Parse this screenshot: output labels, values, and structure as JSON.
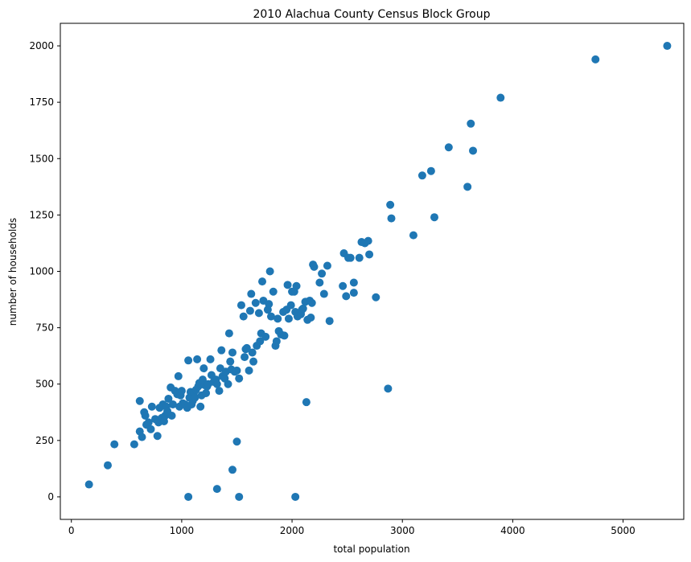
{
  "chart_data": {
    "type": "scatter",
    "title": "2010 Alachua County Census Block Group",
    "xlabel": "total population",
    "ylabel": "number of households",
    "xlim": [
      -100,
      5550
    ],
    "ylim": [
      -100,
      2100
    ],
    "xticks": [
      0,
      1000,
      2000,
      3000,
      4000,
      5000
    ],
    "yticks": [
      0,
      250,
      500,
      750,
      1000,
      1250,
      1500,
      1750,
      2000
    ],
    "grid": false,
    "legend": "none",
    "marker_color": "#1f77b4",
    "series": [
      {
        "points": [
          [
            160,
            55
          ],
          [
            330,
            140
          ],
          [
            390,
            233
          ],
          [
            570,
            233
          ],
          [
            620,
            425
          ],
          [
            620,
            290
          ],
          [
            640,
            265
          ],
          [
            660,
            375
          ],
          [
            670,
            360
          ],
          [
            680,
            320
          ],
          [
            700,
            330
          ],
          [
            720,
            300
          ],
          [
            730,
            400
          ],
          [
            760,
            345
          ],
          [
            780,
            270
          ],
          [
            790,
            330
          ],
          [
            800,
            395
          ],
          [
            810,
            345
          ],
          [
            820,
            350
          ],
          [
            830,
            410
          ],
          [
            840,
            335
          ],
          [
            850,
            360
          ],
          [
            860,
            400
          ],
          [
            870,
            380
          ],
          [
            880,
            435
          ],
          [
            900,
            485
          ],
          [
            910,
            360
          ],
          [
            920,
            410
          ],
          [
            940,
            470
          ],
          [
            960,
            455
          ],
          [
            970,
            535
          ],
          [
            980,
            400
          ],
          [
            990,
            450
          ],
          [
            1000,
            470
          ],
          [
            1010,
            415
          ],
          [
            1030,
            410
          ],
          [
            1050,
            395
          ],
          [
            1060,
            605
          ],
          [
            1070,
            440
          ],
          [
            1080,
            465
          ],
          [
            1090,
            410
          ],
          [
            1100,
            425
          ],
          [
            1110,
            460
          ],
          [
            1120,
            440
          ],
          [
            1130,
            475
          ],
          [
            1140,
            610
          ],
          [
            1150,
            490
          ],
          [
            1160,
            505
          ],
          [
            1170,
            400
          ],
          [
            1180,
            450
          ],
          [
            1190,
            520
          ],
          [
            1200,
            570
          ],
          [
            1210,
            495
          ],
          [
            1220,
            460
          ],
          [
            1230,
            490
          ],
          [
            1240,
            500
          ],
          [
            1260,
            610
          ],
          [
            1270,
            540
          ],
          [
            1290,
            510
          ],
          [
            1310,
            520
          ],
          [
            1320,
            500
          ],
          [
            1340,
            470
          ],
          [
            1350,
            570
          ],
          [
            1360,
            650
          ],
          [
            1370,
            535
          ],
          [
            1390,
            525
          ],
          [
            1400,
            555
          ],
          [
            1420,
            500
          ],
          [
            1430,
            725
          ],
          [
            1440,
            600
          ],
          [
            1450,
            565
          ],
          [
            1460,
            640
          ],
          [
            1480,
            555
          ],
          [
            1500,
            560
          ],
          [
            1520,
            525
          ],
          [
            1540,
            850
          ],
          [
            1560,
            800
          ],
          [
            1570,
            620
          ],
          [
            1580,
            655
          ],
          [
            1590,
            660
          ],
          [
            1610,
            560
          ],
          [
            1620,
            825
          ],
          [
            1630,
            900
          ],
          [
            1640,
            640
          ],
          [
            1650,
            600
          ],
          [
            1670,
            860
          ],
          [
            1680,
            670
          ],
          [
            1700,
            815
          ],
          [
            1710,
            690
          ],
          [
            1720,
            725
          ],
          [
            1730,
            955
          ],
          [
            1740,
            870
          ],
          [
            1760,
            710
          ],
          [
            1780,
            830
          ],
          [
            1790,
            855
          ],
          [
            1800,
            1000
          ],
          [
            1810,
            800
          ],
          [
            1830,
            910
          ],
          [
            1850,
            670
          ],
          [
            1860,
            690
          ],
          [
            1870,
            790
          ],
          [
            1880,
            735
          ],
          [
            1900,
            720
          ],
          [
            1920,
            820
          ],
          [
            1930,
            715
          ],
          [
            1950,
            830
          ],
          [
            1960,
            940
          ],
          [
            1970,
            790
          ],
          [
            1990,
            850
          ],
          [
            2000,
            910
          ],
          [
            2020,
            910
          ],
          [
            2030,
            820
          ],
          [
            2040,
            935
          ],
          [
            2050,
            800
          ],
          [
            2080,
            810
          ],
          [
            2090,
            830
          ],
          [
            2100,
            835
          ],
          [
            2120,
            865
          ],
          [
            2140,
            785
          ],
          [
            2160,
            870
          ],
          [
            2170,
            795
          ],
          [
            2180,
            860
          ],
          [
            2190,
            1030
          ],
          [
            2200,
            1020
          ],
          [
            2250,
            950
          ],
          [
            2270,
            990
          ],
          [
            2290,
            900
          ],
          [
            2320,
            1025
          ],
          [
            2340,
            780
          ],
          [
            2460,
            935
          ],
          [
            2470,
            1080
          ],
          [
            2490,
            890
          ],
          [
            2510,
            1060
          ],
          [
            2530,
            1060
          ],
          [
            2560,
            950
          ],
          [
            2560,
            905
          ],
          [
            2610,
            1060
          ],
          [
            2630,
            1130
          ],
          [
            2660,
            1125
          ],
          [
            2690,
            1135
          ],
          [
            2700,
            1075
          ],
          [
            2760,
            885
          ],
          [
            2870,
            480
          ],
          [
            2890,
            1295
          ],
          [
            2900,
            1235
          ],
          [
            3100,
            1160
          ],
          [
            3180,
            1425
          ],
          [
            3260,
            1445
          ],
          [
            3290,
            1240
          ],
          [
            3420,
            1550
          ],
          [
            3590,
            1375
          ],
          [
            3620,
            1655
          ],
          [
            3640,
            1535
          ],
          [
            3890,
            1770
          ],
          [
            4750,
            1940
          ],
          [
            5400,
            2000
          ],
          [
            1060,
            0
          ],
          [
            1320,
            35
          ],
          [
            1460,
            120
          ],
          [
            1500,
            245
          ],
          [
            1520,
            0
          ],
          [
            2030,
            0
          ],
          [
            2130,
            420
          ]
        ]
      }
    ]
  }
}
